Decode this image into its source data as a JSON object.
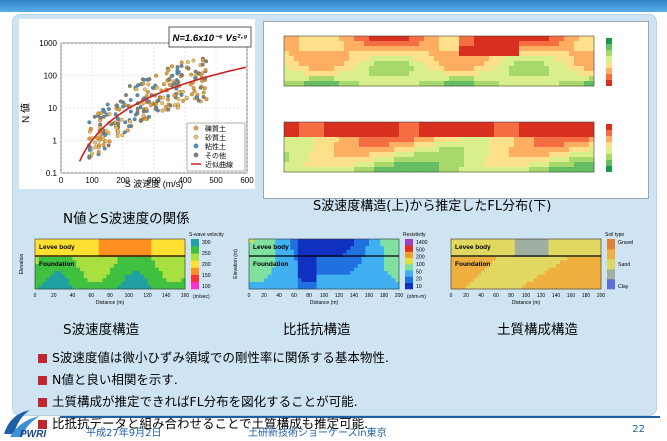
{
  "panels": {
    "scatter": {
      "caption": "N値とS波速度の関係",
      "ylabel": "N 値",
      "xlabel": "S 波速度 (m/s)",
      "equation": "N=1.6x10⁻⁶ Vs²·⁹",
      "yticks": [
        "1000",
        "100",
        "10",
        "1",
        "0.1"
      ],
      "xticks": [
        "0",
        "100",
        "200",
        "300",
        "400",
        "500",
        "600"
      ],
      "legend": [
        {
          "label": "礫質土",
          "color": "#e0a040"
        },
        {
          "label": "砂質土",
          "color": "#e8c070"
        },
        {
          "label": "粘性土",
          "color": "#4a90c8"
        },
        {
          "label": "その他",
          "color": "#808080"
        },
        {
          "label": "近似曲線",
          "color": "#cc2020"
        }
      ]
    },
    "fl": {
      "caption": "S波速度構造(上)から推定したFL分布(下)"
    },
    "vs": {
      "caption": "S波速度構造",
      "colorbar_title": "S-wave velocity",
      "colorbar_ticks": [
        "300",
        "250",
        "200",
        "150",
        "100"
      ],
      "unit": "(m/sec)",
      "levee_label": "Levee body",
      "foundation_label": "Foundation",
      "yaxis_title": "Elevation",
      "xticks": [
        "0",
        "20",
        "40",
        "60",
        "80",
        "100",
        "120",
        "140",
        "160"
      ],
      "xlabel": "Distance (m)"
    },
    "resistivity": {
      "caption": "比抵抗構造",
      "colorbar_title": "Resistivity",
      "colorbar_ticks": [
        "1400",
        "500",
        "200",
        "100",
        "50",
        "20",
        "10"
      ],
      "unit": "(ohm-m)",
      "levee_label": "Levee body",
      "foundation_label": "Foundation",
      "yaxis_title": "Elevation (m)",
      "xticks": [
        "0",
        "20",
        "40",
        "60",
        "80",
        "100",
        "120",
        "140",
        "160",
        "180",
        "200"
      ],
      "xlabel": "Distance (m)"
    },
    "soil": {
      "caption": "土質構成構造",
      "colorbar_title": "Soil type",
      "colorbar_ticks": [
        "Gravel",
        "Sand",
        "Clay"
      ],
      "levee_label": "Levee body",
      "foundation_label": "Foundation",
      "xticks": [
        "0",
        "20",
        "40",
        "60",
        "80",
        "100",
        "120",
        "140",
        "160",
        "180",
        "200"
      ],
      "xlabel": "Distance (m)"
    }
  },
  "bullets": [
    "S波速度値は微小ひずみ領域での剛性率に関係する基本物性.",
    "N値と良い相関を示す.",
    "土質構成が推定できればFL分布を図化することが可能.",
    "比抵抗データと組み合わせることで土質構成も推定可能."
  ],
  "footer": {
    "date": "平成27年9月2日",
    "event": "土研新技術ショーケースin東京",
    "page": "22"
  },
  "logo_text": "PWRI",
  "colors": {
    "accent": "#1f5fa8",
    "panel_bg": "#cfe4f3",
    "bullet": "#c1272d",
    "curve": "#cc2020"
  }
}
